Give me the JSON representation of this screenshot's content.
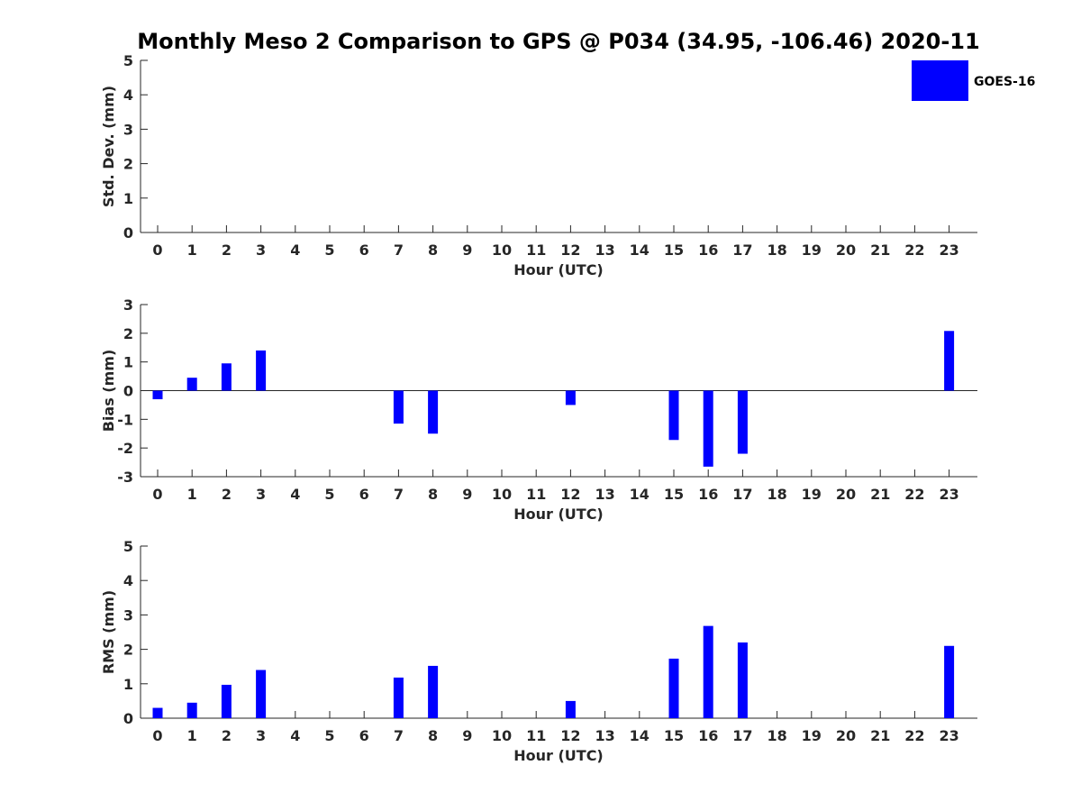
{
  "title": "Monthly Meso 2 Comparison to GPS @ P034 (34.95, -106.46) 2020-11",
  "legend": {
    "label": "GOES-16",
    "color": "#0000ff"
  },
  "chart_data": [
    {
      "type": "bar",
      "ylabel": "Std. Dev. (mm)",
      "xlabel": "Hour (UTC)",
      "ylim": [
        0,
        5
      ],
      "yticks": [
        "0",
        "1",
        "2",
        "3",
        "4",
        "5"
      ],
      "categories": [
        "0",
        "1",
        "2",
        "3",
        "4",
        "5",
        "6",
        "7",
        "8",
        "9",
        "10",
        "11",
        "12",
        "13",
        "14",
        "15",
        "16",
        "17",
        "18",
        "19",
        "20",
        "21",
        "22",
        "23"
      ],
      "series": [
        {
          "name": "GOES-16",
          "values": [
            0,
            0,
            0,
            0,
            0,
            0,
            0,
            0,
            0,
            0,
            0,
            0,
            0,
            0,
            0,
            0,
            0,
            0,
            0,
            0,
            0,
            0,
            0,
            0
          ]
        }
      ]
    },
    {
      "type": "bar",
      "ylabel": "Bias (mm)",
      "xlabel": "Hour (UTC)",
      "ylim": [
        -3,
        3
      ],
      "yticks": [
        "-3",
        "-2",
        "-1",
        "0",
        "1",
        "2",
        "3"
      ],
      "categories": [
        "0",
        "1",
        "2",
        "3",
        "4",
        "5",
        "6",
        "7",
        "8",
        "9",
        "10",
        "11",
        "12",
        "13",
        "14",
        "15",
        "16",
        "17",
        "18",
        "19",
        "20",
        "21",
        "22",
        "23"
      ],
      "series": [
        {
          "name": "GOES-16",
          "values": [
            -0.3,
            0.45,
            0.95,
            1.4,
            0,
            0,
            0,
            -1.15,
            -1.5,
            0,
            0,
            0,
            -0.5,
            0,
            0,
            -1.72,
            -2.65,
            -2.2,
            0,
            0,
            0,
            0,
            0,
            2.08
          ]
        }
      ]
    },
    {
      "type": "bar",
      "ylabel": "RMS (mm)",
      "xlabel": "Hour (UTC)",
      "ylim": [
        0,
        5
      ],
      "yticks": [
        "0",
        "1",
        "2",
        "3",
        "4",
        "5"
      ],
      "categories": [
        "0",
        "1",
        "2",
        "3",
        "4",
        "5",
        "6",
        "7",
        "8",
        "9",
        "10",
        "11",
        "12",
        "13",
        "14",
        "15",
        "16",
        "17",
        "18",
        "19",
        "20",
        "21",
        "22",
        "23"
      ],
      "series": [
        {
          "name": "GOES-16",
          "values": [
            0.3,
            0.45,
            0.97,
            1.4,
            0,
            0,
            0,
            1.18,
            1.52,
            0,
            0,
            0,
            0.5,
            0,
            0,
            1.73,
            2.68,
            2.2,
            0,
            0,
            0,
            0,
            0,
            2.1
          ]
        }
      ]
    }
  ]
}
